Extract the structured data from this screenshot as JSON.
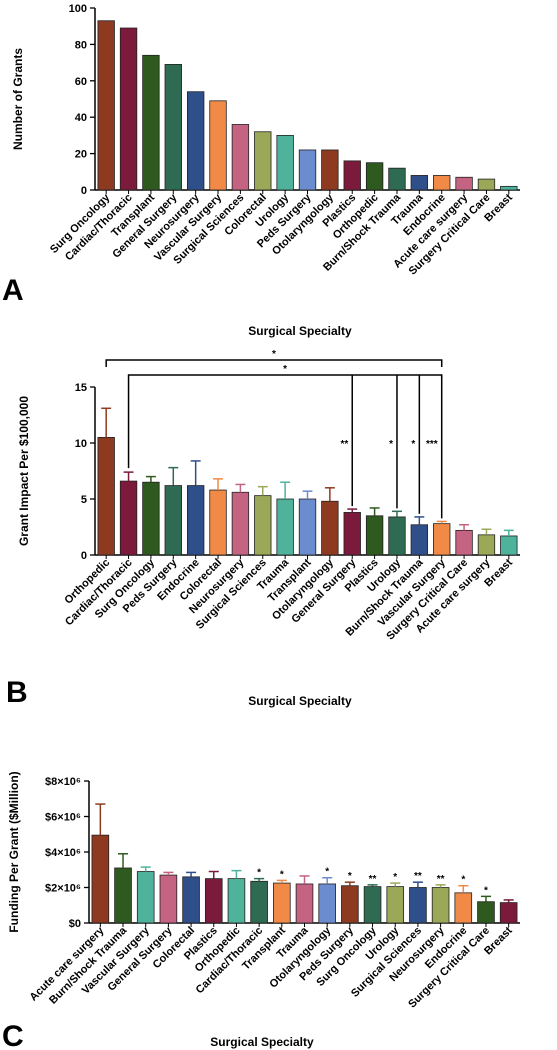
{
  "chart_data": [
    {
      "type": "bar",
      "panel_label": "A",
      "xlabel": "Surgical Specialty",
      "ylabel": "Number of Grants",
      "ylim": [
        0,
        100
      ],
      "yticks": [
        "0",
        "20",
        "40",
        "60",
        "80",
        "100"
      ],
      "categories": [
        "Surg Oncology",
        "Cardiac/Thoracic",
        "Transplant",
        "General Surgery",
        "Neurosurgery",
        "Vascular Surgery",
        "Surgical Sciences",
        "Colorectal",
        "Urology",
        "Peds Surgery",
        "Otolaryngology",
        "Plastics",
        "Orthopedic",
        "Burn/Shock Trauma",
        "Trauma",
        "Endocrine",
        "Acute care surgery",
        "Surgery Critical Care",
        "Breast"
      ],
      "values": [
        93,
        89,
        74,
        69,
        54,
        49,
        36,
        32,
        30,
        22,
        22,
        16,
        15,
        12,
        8,
        8,
        7,
        6,
        2
      ],
      "colors": [
        "#8e3a20",
        "#7b1a3a",
        "#2f5a1f",
        "#2e6b52",
        "#2f4f8a",
        "#f08a46",
        "#c46482",
        "#9aa857",
        "#4fb39c",
        "#6b8ccf",
        "#8e3a20",
        "#7b1a3a",
        "#2f5a1f",
        "#2e6b52",
        "#2f4f8a",
        "#f08a46",
        "#c46482",
        "#9aa857",
        "#4fb39c"
      ]
    },
    {
      "type": "bar",
      "panel_label": "B",
      "xlabel": "Surgical Specialty",
      "ylabel": "Grant Impact Per $100,000",
      "ylim": [
        0,
        15
      ],
      "yticks": [
        "0",
        "5",
        "10",
        "15"
      ],
      "categories": [
        "Orthopedic",
        "Cardiac/Thoracic",
        "Surg Oncology",
        "Peds Surgery",
        "Endocrine",
        "Colorectal",
        "Neurosurgery",
        "Surgical Sciences",
        "Trauma",
        "Transplant",
        "Otolaryngology",
        "General Surgery",
        "Plastics",
        "Urology",
        "Burn/Shock Trauma",
        "Vascular Surgery",
        "Surgery Critical Care",
        "Acute care surgery",
        "Breast"
      ],
      "values": [
        10.5,
        6.6,
        6.5,
        6.2,
        6.2,
        5.8,
        5.6,
        5.3,
        5.0,
        5.0,
        4.8,
        3.8,
        3.5,
        3.4,
        2.7,
        2.8,
        2.2,
        1.8,
        1.7
      ],
      "errors": [
        2.6,
        0.8,
        0.5,
        1.6,
        2.2,
        1.0,
        0.7,
        0.8,
        1.5,
        0.7,
        1.2,
        0.3,
        0.7,
        0.5,
        0.7,
        0.2,
        0.5,
        0.5,
        0.5
      ],
      "colors": [
        "#8e3a20",
        "#7b1a3a",
        "#2f5a1f",
        "#2e6b52",
        "#2f4f8a",
        "#f08a46",
        "#c46482",
        "#9aa857",
        "#4fb39c",
        "#6b8ccf",
        "#8e3a20",
        "#7b1a3a",
        "#2f5a1f",
        "#2e6b52",
        "#2f4f8a",
        "#f08a46",
        "#c46482",
        "#9aa857",
        "#4fb39c"
      ],
      "brackets": [
        {
          "from": 0,
          "to": 15,
          "label": "*",
          "level": 1
        },
        {
          "from": 1,
          "to": 15,
          "label": "*",
          "level": 2
        }
      ],
      "drops": [
        {
          "at": 11,
          "label": "**"
        },
        {
          "at": 13,
          "label": "*"
        },
        {
          "at": 14,
          "label": "*"
        },
        {
          "at": 15,
          "label": "***"
        }
      ]
    },
    {
      "type": "bar",
      "panel_label": "C",
      "xlabel": "Surgical Specialty",
      "ylabel": "Funding Per Grant ($Million)",
      "ylim": [
        0,
        8000000
      ],
      "yticks": [
        "$0",
        "$2×10⁶",
        "$4×10⁶",
        "$6×10⁶",
        "$8×10⁶"
      ],
      "categories": [
        "Acute care surgery",
        "Burn/Shock Trauma",
        "Vascular Surgery",
        "General Surgery",
        "Colorectal",
        "Plastics",
        "Orthopedic",
        "Cardiac/Thoracic",
        "Transplant",
        "Trauma",
        "Otolaryngology",
        "Peds Surgery",
        "Surg Oncology",
        "Urology",
        "Surgical Sciences",
        "Neurosurgery",
        "Endocrine",
        "Surgery Critical Care",
        "Breast"
      ],
      "values": [
        4950000,
        3100000,
        2900000,
        2700000,
        2600000,
        2500000,
        2500000,
        2350000,
        2250000,
        2200000,
        2200000,
        2100000,
        2050000,
        2050000,
        2000000,
        2000000,
        1700000,
        1200000,
        1150000
      ],
      "errors": [
        1750000,
        800000,
        250000,
        150000,
        250000,
        400000,
        450000,
        150000,
        150000,
        450000,
        350000,
        200000,
        100000,
        200000,
        300000,
        150000,
        400000,
        300000,
        150000
      ],
      "significance": [
        "",
        "",
        "",
        "",
        "",
        "",
        "",
        "*",
        "*",
        "",
        "*",
        "*",
        "**",
        "*",
        "**",
        "**",
        "*",
        "*",
        ""
      ],
      "colors": [
        "#8e3a20",
        "#2f5a1f",
        "#4fb39c",
        "#c46482",
        "#2f4f8a",
        "#7b1a3a",
        "#4fb39c",
        "#2e6b52",
        "#f08a46",
        "#c46482",
        "#6b8ccf",
        "#8e3a20",
        "#2e6b52",
        "#9aa857",
        "#2f4f8a",
        "#9aa857",
        "#f08a46",
        "#2f5a1f",
        "#7b1a3a"
      ]
    }
  ]
}
